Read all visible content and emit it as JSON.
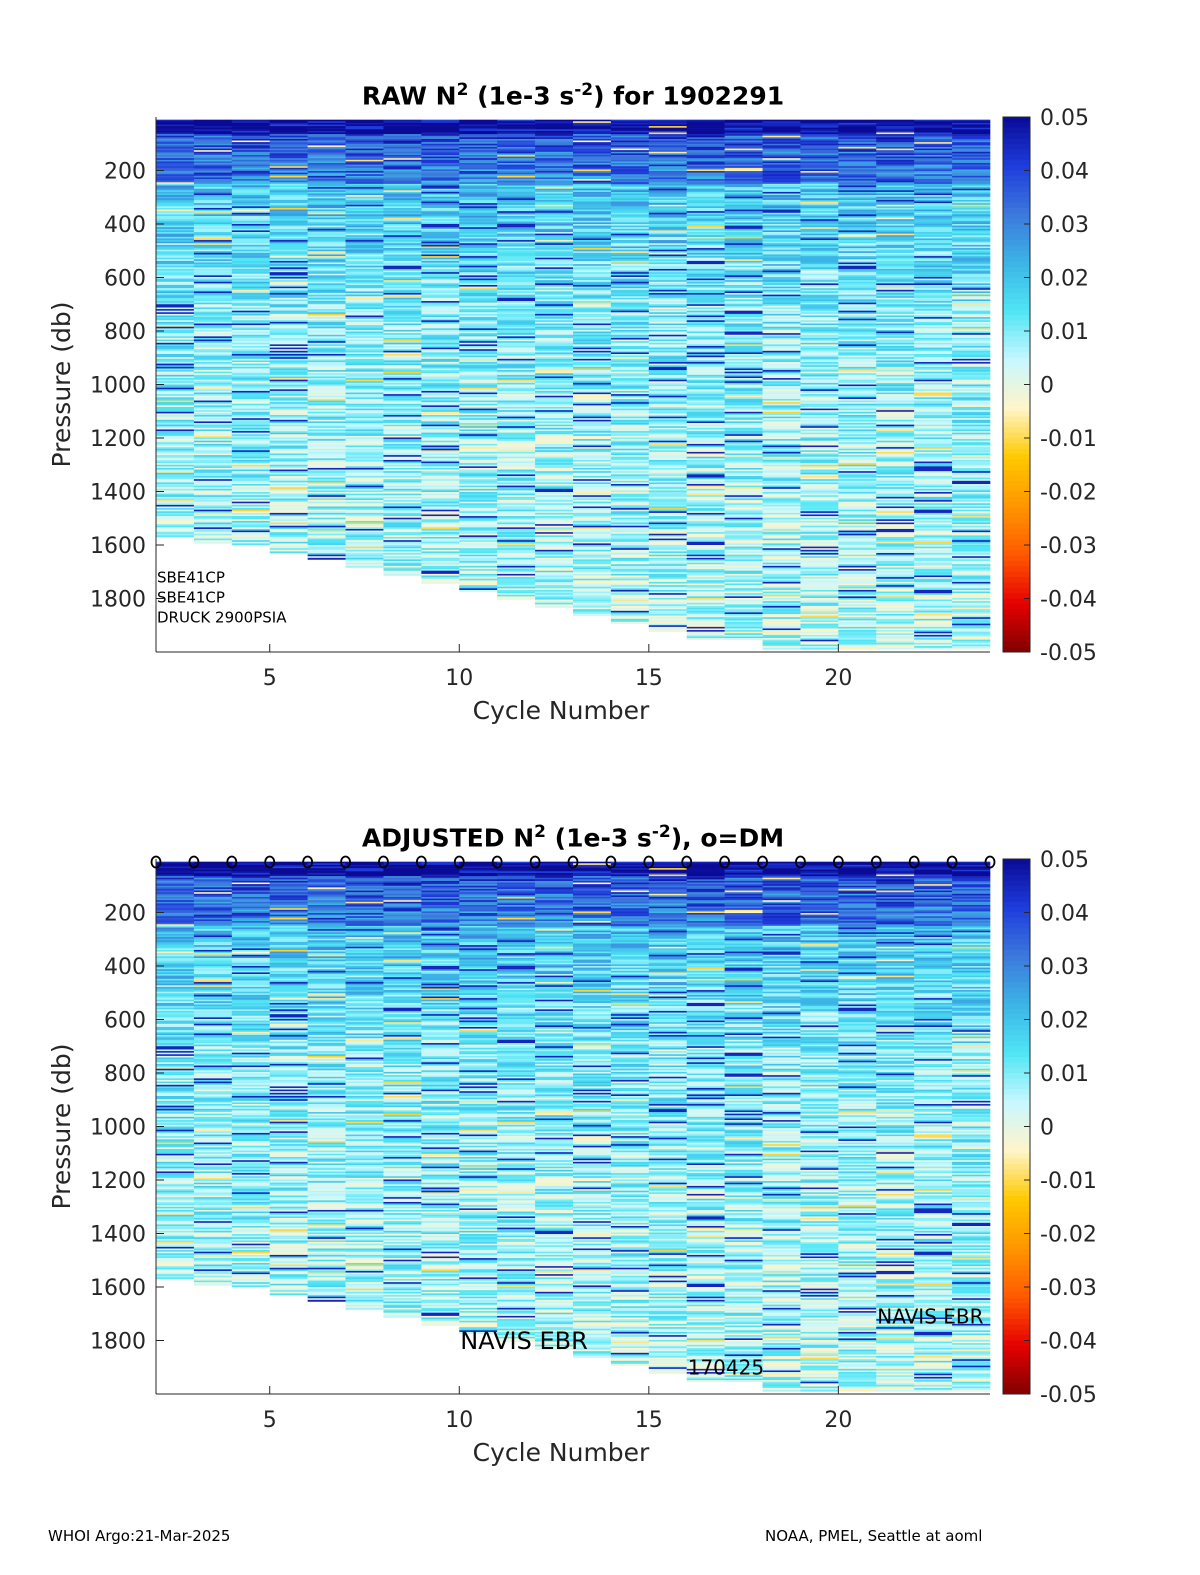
{
  "colors": {
    "colormap": [
      "#800000",
      "#e60000",
      "#ff5a00",
      "#ff9600",
      "#ffc800",
      "#fff5c8",
      "#c8f7ff",
      "#50e6f5",
      "#3cb4e6",
      "#3c78dc",
      "#1e3cdc",
      "#0a0a96"
    ],
    "zero_band": "#fff5c8",
    "marker": "#000000"
  },
  "chart_data": [
    {
      "type": "heatmap",
      "title_main": "RAW N",
      "title_sup1": "2",
      "title_mid": " (1e-3 s",
      "title_sup2": "-2",
      "title_end": ") for 1902291",
      "xlabel": "Cycle Number",
      "ylabel": "Pressure (db)",
      "xlim": [
        2,
        24
      ],
      "ylim": [
        0,
        2000
      ],
      "xticks": [
        5,
        10,
        15,
        20
      ],
      "yticks": [
        200,
        400,
        600,
        800,
        1000,
        1200,
        1400,
        1600,
        1800
      ],
      "clim": [
        -0.05,
        0.05
      ],
      "colorbar_ticks": [
        "0.05",
        "0.04",
        "0.03",
        "0.02",
        "0.01",
        "0",
        "-0.01",
        "-0.02",
        "-0.03",
        "-0.04",
        "-0.05"
      ],
      "cycles": [
        2,
        3,
        4,
        5,
        6,
        7,
        8,
        9,
        10,
        11,
        12,
        13,
        14,
        15,
        16,
        17,
        18,
        19,
        20,
        21,
        22,
        23
      ],
      "max_pressure": [
        1570,
        1590,
        1600,
        1630,
        1650,
        1680,
        1710,
        1740,
        1770,
        1800,
        1830,
        1860,
        1890,
        1920,
        1950,
        1950,
        1990,
        1990,
        1990,
        1990,
        1990,
        1990
      ],
      "annotations": [
        {
          "text": "SBE41CP",
          "x": 2,
          "y": 1720
        },
        {
          "text": "SBE41CP",
          "x": 2,
          "y": 1795
        },
        {
          "text": "DRUCK 2900PSIA",
          "x": 2,
          "y": 1870
        }
      ],
      "dm_markers": []
    },
    {
      "type": "heatmap",
      "title_main": "ADJUSTED N",
      "title_sup1": "2",
      "title_mid": " (1e-3 s",
      "title_sup2": "-2",
      "title_end": "), o=DM",
      "xlabel": "Cycle Number",
      "ylabel": "Pressure (db)",
      "xlim": [
        2,
        24
      ],
      "ylim": [
        0,
        2000
      ],
      "xticks": [
        5,
        10,
        15,
        20
      ],
      "yticks": [
        200,
        400,
        600,
        800,
        1000,
        1200,
        1400,
        1600,
        1800
      ],
      "clim": [
        -0.05,
        0.05
      ],
      "colorbar_ticks": [
        "0.05",
        "0.04",
        "0.03",
        "0.02",
        "0.01",
        "0",
        "-0.01",
        "-0.02",
        "-0.03",
        "-0.04",
        "-0.05"
      ],
      "cycles": [
        2,
        3,
        4,
        5,
        6,
        7,
        8,
        9,
        10,
        11,
        12,
        13,
        14,
        15,
        16,
        17,
        18,
        19,
        20,
        21,
        22,
        23
      ],
      "max_pressure": [
        1570,
        1590,
        1600,
        1630,
        1650,
        1680,
        1710,
        1740,
        1770,
        1800,
        1830,
        1860,
        1890,
        1920,
        1950,
        1950,
        1990,
        1990,
        1990,
        1990,
        1990,
        1990
      ],
      "annotations": [
        {
          "text": "NAVIS EBR",
          "x": 10,
          "y": 1800,
          "size": "large"
        },
        {
          "text": "170425",
          "x": 16,
          "y": 1900,
          "size": "medium"
        },
        {
          "text": "NAVIS EBR",
          "x": 21,
          "y": 1710,
          "size": "medium"
        }
      ],
      "dm_markers": [
        2,
        3,
        4,
        5,
        6,
        7,
        8,
        9,
        10,
        11,
        12,
        13,
        14,
        15,
        16,
        17,
        18,
        19,
        20,
        21,
        22,
        23,
        24
      ],
      "dm_marker_symbol": "o"
    }
  ],
  "footer": {
    "left": "WHOI Argo:21-Mar-2025",
    "right": "NOAA, PMEL, Seattle at aoml"
  }
}
